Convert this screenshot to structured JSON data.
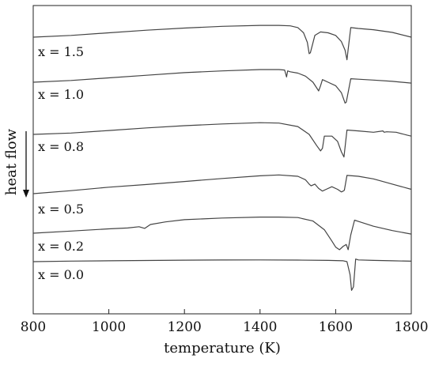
{
  "chart_data": {
    "type": "line",
    "xlabel": "temperature (K)",
    "ylabel": "heat flow",
    "xlim": [
      800,
      1800
    ],
    "xticks": [
      800,
      1000,
      1200,
      1400,
      1600,
      1800
    ],
    "yticks_shown": false,
    "grid": false,
    "legend": "none",
    "series": [
      {
        "name": "x = 1.5",
        "x": [
          800,
          900,
          1000,
          1100,
          1200,
          1300,
          1400,
          1450,
          1480,
          1500,
          1515,
          1525,
          1530,
          1533,
          1545,
          1560,
          1580,
          1600,
          1615,
          1625,
          1630,
          1633,
          1640,
          1660,
          1700,
          1750,
          1800
        ],
        "y": [
          0.0,
          0.2,
          0.5,
          0.8,
          1.05,
          1.25,
          1.35,
          1.35,
          1.3,
          1.1,
          0.5,
          -0.6,
          -1.9,
          -1.8,
          0.2,
          0.6,
          0.5,
          0.2,
          -0.5,
          -1.5,
          -2.6,
          -1.4,
          1.1,
          1.0,
          0.85,
          0.55,
          0.0
        ]
      },
      {
        "name": "x = 1.0",
        "x": [
          800,
          900,
          1000,
          1100,
          1200,
          1300,
          1400,
          1450,
          1465,
          1470,
          1473,
          1480,
          1500,
          1520,
          1540,
          1555,
          1560,
          1565,
          1580,
          1600,
          1615,
          1625,
          1628,
          1640,
          1660,
          1700,
          1750,
          1800
        ],
        "y": [
          0.0,
          0.2,
          0.5,
          0.8,
          1.1,
          1.3,
          1.45,
          1.45,
          1.4,
          0.6,
          1.3,
          1.2,
          1.05,
          0.7,
          0.0,
          -1.0,
          -0.4,
          0.3,
          0.0,
          -0.4,
          -1.2,
          -2.4,
          -2.3,
          0.4,
          0.35,
          0.25,
          0.1,
          -0.1
        ]
      },
      {
        "name": "x = 0.8",
        "x": [
          800,
          900,
          1000,
          1100,
          1200,
          1300,
          1400,
          1450,
          1500,
          1530,
          1550,
          1560,
          1565,
          1570,
          1590,
          1605,
          1615,
          1622,
          1630,
          1660,
          1700,
          1725,
          1728,
          1735,
          1760,
          1790,
          1800
        ],
        "y": [
          0.0,
          0.15,
          0.45,
          0.75,
          1.0,
          1.2,
          1.35,
          1.3,
          0.9,
          0.0,
          -1.3,
          -1.9,
          -1.6,
          -0.2,
          -0.2,
          -0.8,
          -2.0,
          -2.6,
          0.5,
          0.4,
          0.25,
          0.4,
          0.25,
          0.3,
          0.25,
          -0.1,
          -0.2
        ]
      },
      {
        "name": "x = 0.5",
        "x": [
          800,
          900,
          1000,
          1100,
          1200,
          1300,
          1400,
          1450,
          1500,
          1520,
          1530,
          1535,
          1545,
          1555,
          1565,
          1575,
          1590,
          1605,
          1615,
          1620,
          1623,
          1630,
          1660,
          1700,
          1750,
          1800
        ],
        "y": [
          0.0,
          0.35,
          0.75,
          1.05,
          1.4,
          1.75,
          2.05,
          2.15,
          2.0,
          1.6,
          1.1,
          0.9,
          1.1,
          0.6,
          0.3,
          0.5,
          0.8,
          0.5,
          0.2,
          0.3,
          0.4,
          2.1,
          2.0,
          1.7,
          1.1,
          0.5
        ]
      },
      {
        "name": "x = 0.2",
        "x": [
          800,
          900,
          1000,
          1050,
          1080,
          1095,
          1110,
          1150,
          1200,
          1300,
          1400,
          1450,
          1500,
          1540,
          1570,
          1590,
          1600,
          1610,
          1620,
          1628,
          1633,
          1640,
          1650,
          1660,
          1700,
          1750,
          1800
        ],
        "y": [
          0.0,
          0.25,
          0.5,
          0.6,
          0.75,
          0.55,
          1.0,
          1.3,
          1.55,
          1.75,
          1.85,
          1.85,
          1.8,
          1.4,
          0.4,
          -0.9,
          -1.6,
          -1.9,
          -1.5,
          -1.3,
          -1.9,
          -0.2,
          1.5,
          1.35,
          0.8,
          0.3,
          -0.1
        ]
      },
      {
        "name": "x = 0.0",
        "x": [
          800,
          900,
          1000,
          1100,
          1200,
          1300,
          1400,
          1500,
          1580,
          1620,
          1630,
          1638,
          1642,
          1647,
          1653,
          1660,
          1700,
          1750,
          1800
        ],
        "y": [
          0.0,
          0.06,
          0.1,
          0.14,
          0.17,
          0.19,
          0.2,
          0.18,
          0.15,
          0.1,
          0.0,
          -1.5,
          -3.3,
          -2.9,
          0.3,
          0.2,
          0.15,
          0.1,
          0.05
        ]
      }
    ]
  }
}
